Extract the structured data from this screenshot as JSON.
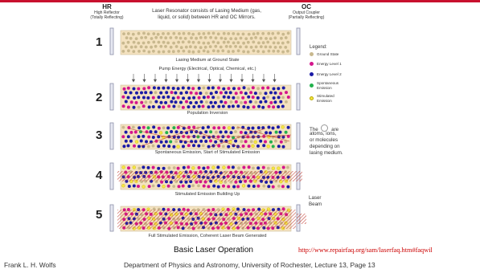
{
  "header": {
    "hr_title": "HR",
    "hr_sub1": "High Reflector",
    "hr_sub2": "(Totally Reflecting)",
    "oc_title": "OC",
    "oc_sub1": "Output Coupler",
    "oc_sub2": "(Partially Reflecting)",
    "intro_line1": "Laser Resonator consists of Lasing Medium (gas,",
    "intro_line2": "liquid, or solid) between HR and OC Mirrors."
  },
  "pump_label": "Pump Energy (Electrical, Optical, Chemical, etc.)",
  "steps": [
    {
      "number": "1",
      "caption": "Lasing Medium at Ground State"
    },
    {
      "number": "2",
      "caption": "Population Inversion"
    },
    {
      "number": "3",
      "caption": "Spontaneous Emission, Start of Stimulated Emission"
    },
    {
      "number": "4",
      "caption": "Stimulated Emission Building Up"
    },
    {
      "number": "5",
      "caption": "Full Stimulated Emission, Coherent Laser Beam Generated"
    }
  ],
  "legend": {
    "title": "Legend:",
    "items": [
      {
        "label": "Ground State",
        "color": "#c8b88e"
      },
      {
        "label": "Energy Level 1",
        "color": "#d4158c"
      },
      {
        "label": "Energy Level 2",
        "color": "#1a1aa6"
      },
      {
        "label": "Spontaneous",
        "label2": "Emission",
        "color": "#22b14c"
      },
      {
        "label": "Stimulated",
        "label2": "Emission",
        "color": "#f5e642"
      }
    ]
  },
  "note": {
    "line1": "The",
    "line1b": "are",
    "line2": "atoms, ions,",
    "line3": "or molecules",
    "line4": "depending on",
    "line5": "lasing medium."
  },
  "laser_beam": {
    "line1": "Laser",
    "line2": "Beam"
  },
  "diagram_title": "Basic Laser Operation",
  "source_url": "http://www.repairfaq.org/sam/laserfaq.htm#faqwil",
  "footer": {
    "author": "Frank L. H. Wolfs",
    "dept": "Department of Physics and Astronomy, University of Rochester, Lecture 13, Page 13"
  },
  "colors": {
    "medium_fill": "#f4e2c0",
    "mirror_fill": "#e6e8f2",
    "mirror_stroke": "#8c8fa8",
    "beam": "#c03a30",
    "accent": "#c8102e"
  }
}
